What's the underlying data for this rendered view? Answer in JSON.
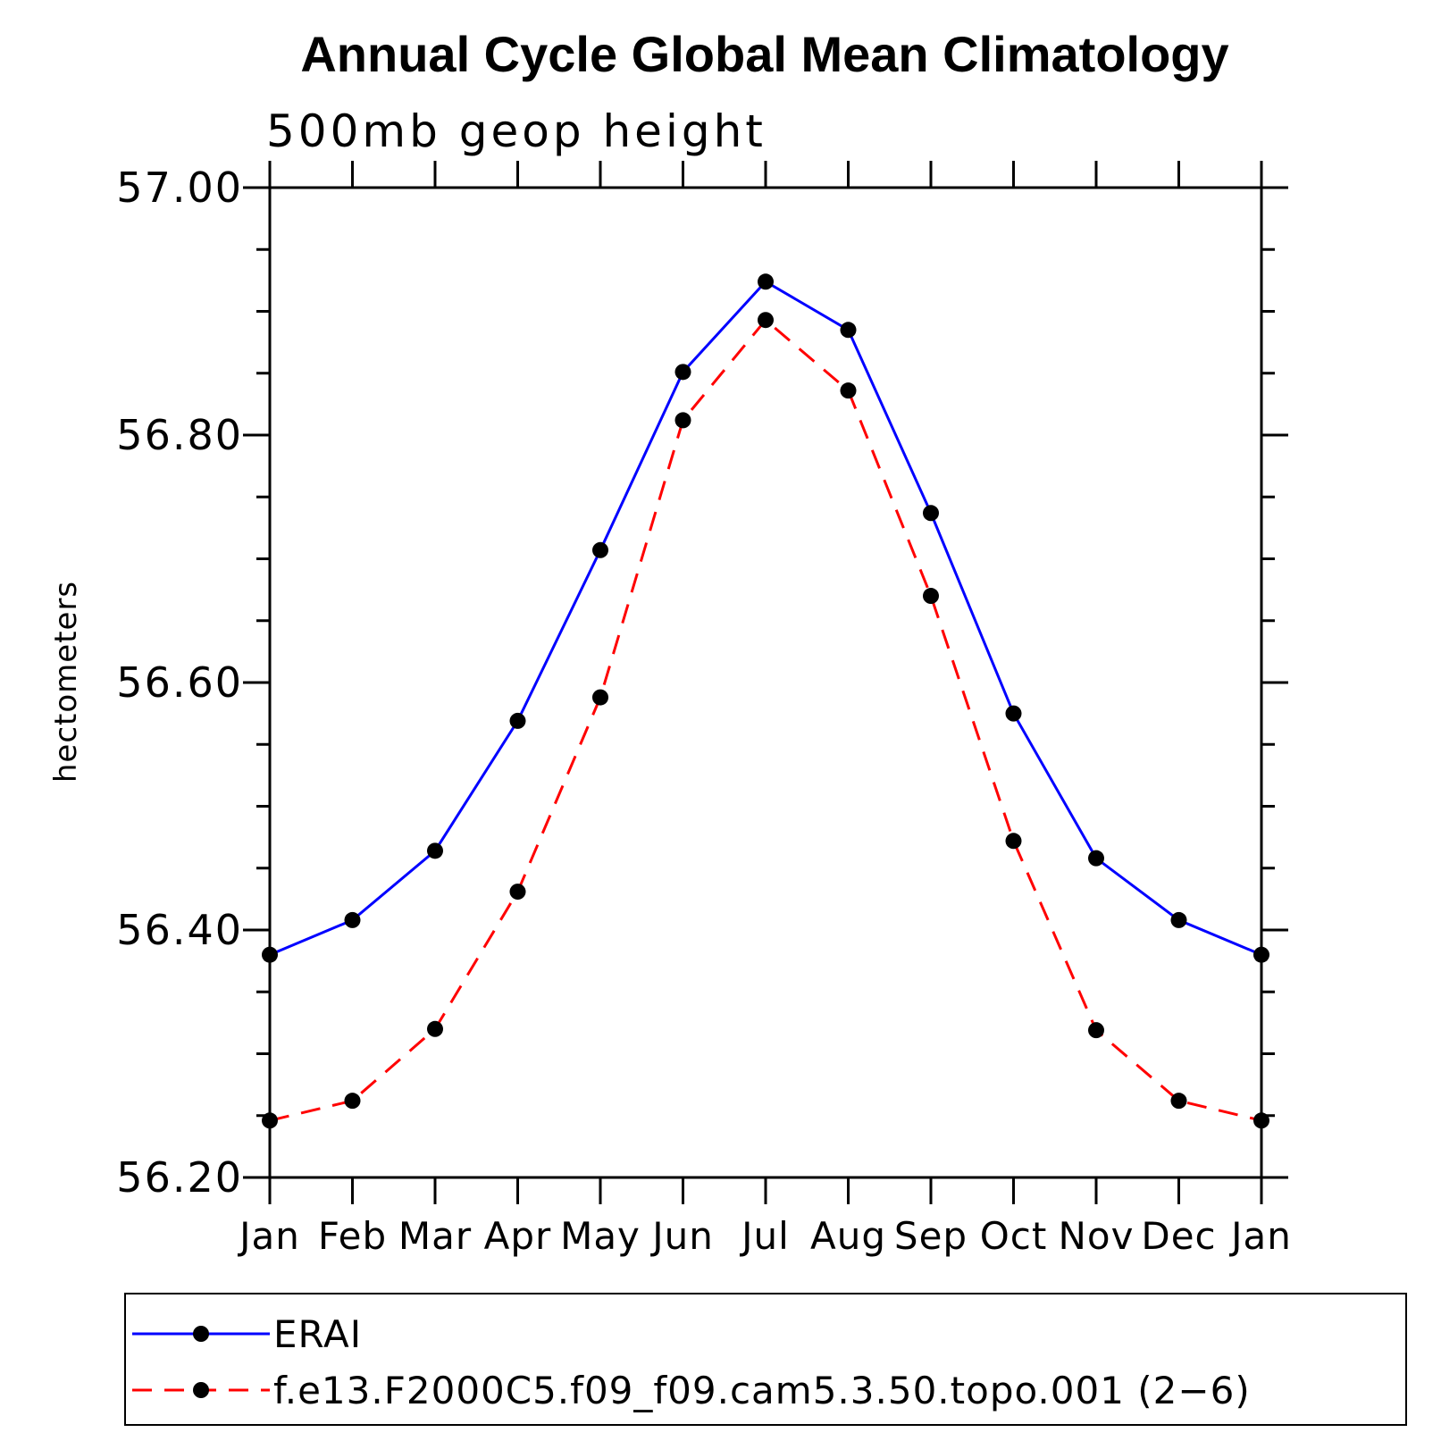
{
  "chart_data": {
    "type": "line",
    "title": "Annual Cycle Global Mean Climatology",
    "subtitle": "500mb geop height",
    "ylabel": "hectometers",
    "xlabel": "",
    "categories": [
      "Jan",
      "Feb",
      "Mar",
      "Apr",
      "May",
      "Jun",
      "Jul",
      "Aug",
      "Sep",
      "Oct",
      "Nov",
      "Dec",
      "Jan"
    ],
    "ylim": [
      56.2,
      57.0
    ],
    "yticks": [
      "56.20",
      "56.40",
      "56.60",
      "56.80",
      "57.00"
    ],
    "grid": false,
    "legend_position": "bottom",
    "series": [
      {
        "name": "ERAI",
        "color": "#0000ff",
        "dash": "solid",
        "marker": "filled-circle",
        "values": [
          56.38,
          56.408,
          56.464,
          56.569,
          56.707,
          56.851,
          56.924,
          56.885,
          56.737,
          56.575,
          56.458,
          56.408,
          56.38
        ]
      },
      {
        "name": "f.e13.F2000C5.f09_f09.cam5.3.50.topo.001 (2−6)",
        "color": "#ff0000",
        "dash": "dashed",
        "marker": "filled-circle",
        "values": [
          56.246,
          56.262,
          56.32,
          56.431,
          56.588,
          56.812,
          56.893,
          56.836,
          56.67,
          56.472,
          56.319,
          56.262,
          56.246
        ]
      }
    ]
  }
}
